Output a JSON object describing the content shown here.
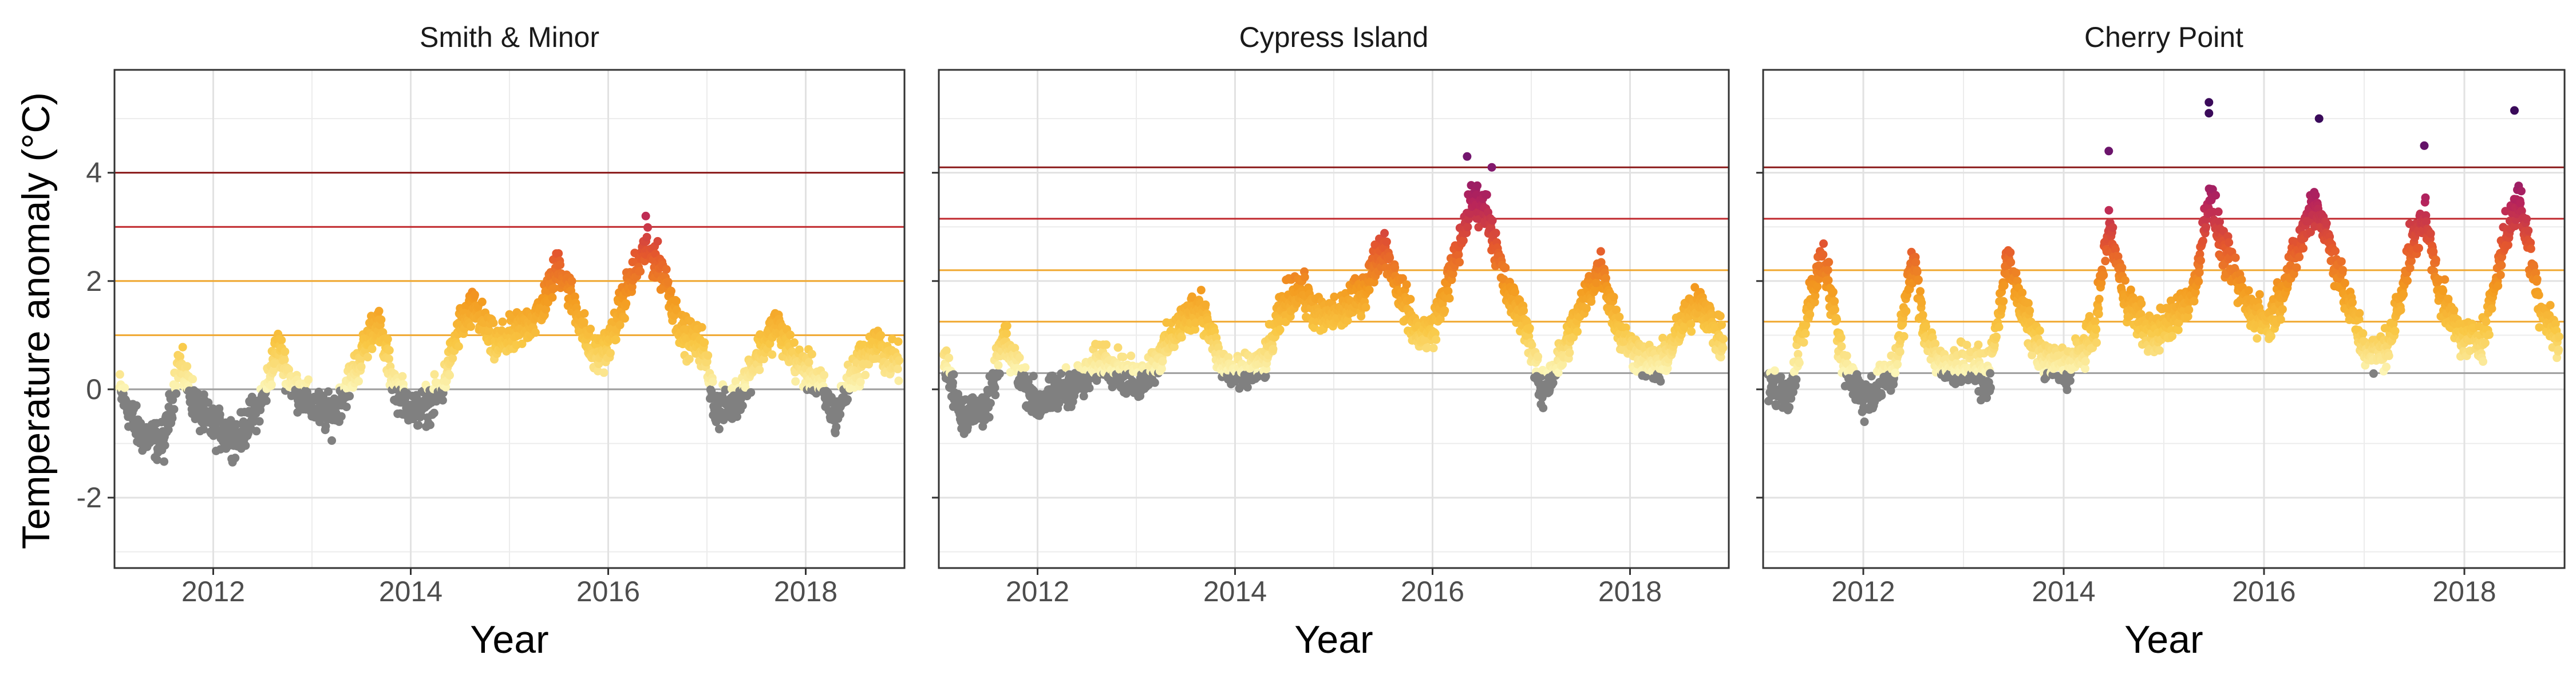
{
  "figure": {
    "ylabel": "Temperature anomaly (°C)"
  },
  "colors": {
    "below_zero": "#808080",
    "zero_line": "#9e9e9e",
    "threshold_lines": [
      "#f0a830",
      "#f0a830",
      "#c0282d",
      "#8b1a1a"
    ],
    "gradient": [
      "#fcf6b8",
      "#f9c845",
      "#f39a1f",
      "#e4572e",
      "#b8245b",
      "#7a1770",
      "#3a0a5a"
    ],
    "panel_border": "#333333",
    "grid": "#ececec"
  },
  "chart_data": [
    {
      "type": "scatter",
      "title": "Smith & Minor",
      "xlabel": "Year",
      "ylabel": "Temperature anomaly (°C)",
      "xlim": [
        2011.0,
        2019.0
      ],
      "ylim": [
        -3.3,
        5.9
      ],
      "x_ticks": [
        2012,
        2014,
        2016,
        2018
      ],
      "x_tick_labels": [
        "2012",
        "2014",
        "2016",
        "2018"
      ],
      "y_ticks": [
        -2,
        0,
        2,
        4
      ],
      "y_tick_labels": [
        "-2",
        "0",
        "2",
        "4"
      ],
      "threshold_lines": [
        0,
        1,
        2,
        3,
        4
      ],
      "series_daily_anomaly": {
        "x": [
          2011.0,
          2011.25,
          2011.5,
          2011.65,
          2011.85,
          2012.0,
          2012.25,
          2012.5,
          2012.65,
          2012.8,
          2013.0,
          2013.2,
          2013.45,
          2013.65,
          2013.85,
          2014.05,
          2014.3,
          2014.5,
          2014.65,
          2014.85,
          2015.05,
          2015.3,
          2015.5,
          2015.65,
          2015.85,
          2016.0,
          2016.2,
          2016.38,
          2016.55,
          2016.75,
          2016.95,
          2017.1,
          2017.3,
          2017.5,
          2017.7,
          2017.9,
          2018.1,
          2018.3,
          2018.5,
          2018.7,
          2018.9
        ],
        "y": [
          0.2,
          -0.8,
          -1.0,
          0.5,
          -0.4,
          -0.7,
          -0.9,
          -0.2,
          0.8,
          0.1,
          -0.3,
          -0.5,
          0.4,
          1.3,
          0.0,
          -0.4,
          -0.1,
          1.2,
          1.5,
          0.8,
          1.0,
          1.4,
          2.3,
          1.6,
          0.6,
          0.8,
          1.9,
          2.6,
          2.2,
          1.0,
          0.8,
          -0.4,
          -0.2,
          0.6,
          1.2,
          0.5,
          0.2,
          -0.5,
          0.4,
          0.8,
          0.5
        ],
        "noise": 0.6
      },
      "notable_points": [
        {
          "x": 2016.38,
          "y": 3.2
        }
      ]
    },
    {
      "type": "scatter",
      "title": "Cypress Island",
      "xlabel": "Year",
      "ylabel": "Temperature anomaly (°C)",
      "xlim": [
        2011.0,
        2019.0
      ],
      "ylim": [
        -3.3,
        5.9
      ],
      "x_ticks": [
        2012,
        2014,
        2016,
        2018
      ],
      "x_tick_labels": [
        "2012",
        "2014",
        "2016",
        "2018"
      ],
      "y_ticks": [
        -2,
        0,
        2,
        4
      ],
      "threshold_lines": [
        0.3,
        1.25,
        2.2,
        3.15,
        4.1
      ],
      "series_daily_anomaly": {
        "x": [
          2011.0,
          2011.25,
          2011.5,
          2011.65,
          2011.85,
          2012.0,
          2012.25,
          2012.5,
          2012.65,
          2012.8,
          2013.0,
          2013.2,
          2013.45,
          2013.65,
          2013.85,
          2014.05,
          2014.3,
          2014.5,
          2014.65,
          2014.85,
          2015.05,
          2015.3,
          2015.5,
          2015.65,
          2015.85,
          2016.0,
          2016.2,
          2016.4,
          2016.55,
          2016.75,
          2016.95,
          2017.1,
          2017.3,
          2017.5,
          2017.7,
          2017.9,
          2018.1,
          2018.3,
          2018.5,
          2018.7,
          2018.9
        ],
        "y": [
          0.8,
          -0.5,
          -0.3,
          0.9,
          0.2,
          -0.3,
          0.0,
          0.2,
          0.6,
          0.4,
          0.1,
          0.5,
          1.2,
          1.6,
          0.5,
          0.2,
          0.5,
          1.6,
          1.9,
          1.3,
          1.4,
          1.8,
          2.7,
          1.9,
          1.0,
          1.1,
          2.2,
          3.5,
          3.3,
          1.8,
          1.2,
          -0.1,
          0.6,
          1.5,
          2.3,
          1.0,
          0.6,
          0.4,
          1.1,
          1.7,
          0.9
        ],
        "noise": 0.6
      },
      "notable_points": [
        {
          "x": 2016.35,
          "y": 4.3
        },
        {
          "x": 2016.6,
          "y": 4.1
        }
      ]
    },
    {
      "type": "scatter",
      "title": "Cherry Point",
      "xlabel": "Year",
      "ylabel": "Temperature anomaly (°C)",
      "xlim": [
        2011.0,
        2019.0
      ],
      "ylim": [
        -3.3,
        5.9
      ],
      "x_ticks": [
        2012,
        2014,
        2016,
        2018
      ],
      "x_tick_labels": [
        "2012",
        "2014",
        "2016",
        "2018"
      ],
      "y_ticks": [
        -2,
        0,
        2,
        4
      ],
      "threshold_lines": [
        0.3,
        1.25,
        2.2,
        3.15,
        4.1
      ],
      "series_daily_anomaly": {
        "x": [
          2011.0,
          2011.25,
          2011.45,
          2011.6,
          2011.8,
          2012.0,
          2012.3,
          2012.5,
          2012.6,
          2012.8,
          2013.0,
          2013.25,
          2013.45,
          2013.55,
          2013.8,
          2014.05,
          2014.3,
          2014.45,
          2014.6,
          2014.85,
          2015.05,
          2015.3,
          2015.45,
          2015.6,
          2015.85,
          2016.05,
          2016.3,
          2016.5,
          2016.6,
          2016.85,
          2017.05,
          2017.25,
          2017.45,
          2017.6,
          2017.8,
          2018.0,
          2018.2,
          2018.4,
          2018.55,
          2018.75,
          2018.95
        ],
        "y": [
          0.2,
          -0.2,
          1.5,
          2.5,
          0.5,
          -0.2,
          0.3,
          2.4,
          1.2,
          0.3,
          0.5,
          0.2,
          2.5,
          1.6,
          0.5,
          0.4,
          1.0,
          3.0,
          1.8,
          1.0,
          1.2,
          1.8,
          3.6,
          2.5,
          1.5,
          1.2,
          2.4,
          3.5,
          3.0,
          1.5,
          0.6,
          0.8,
          2.5,
          3.2,
          1.5,
          0.9,
          1.0,
          2.8,
          3.5,
          1.6,
          0.8
        ],
        "noise": 0.65
      },
      "notable_points": [
        {
          "x": 2015.45,
          "y": 5.3
        },
        {
          "x": 2015.45,
          "y": 5.1
        },
        {
          "x": 2016.55,
          "y": 5.0
        },
        {
          "x": 2018.5,
          "y": 5.15
        },
        {
          "x": 2017.6,
          "y": 4.5
        },
        {
          "x": 2014.45,
          "y": 4.4
        }
      ]
    }
  ]
}
